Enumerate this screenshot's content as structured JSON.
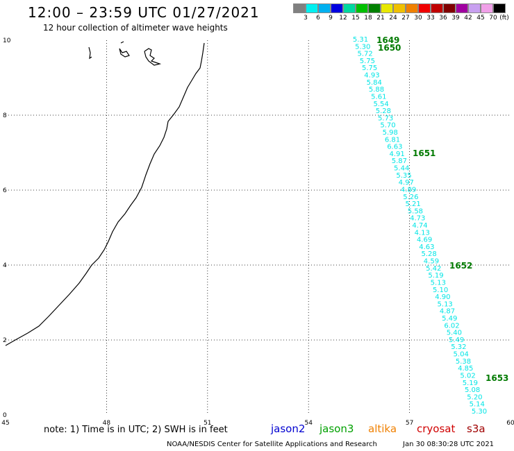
{
  "header": {
    "title": "12:00 – 23:59 UTC 01/27/2021",
    "subtitle": "12 hour collection of altimeter wave heights"
  },
  "legend": {
    "colors": [
      "#808080",
      "#00f0f0",
      "#00b0f0",
      "#0000e0",
      "#00d8a0",
      "#00c000",
      "#008000",
      "#e8e800",
      "#f0c000",
      "#f08000",
      "#f00000",
      "#c00000",
      "#800000",
      "#a000a0",
      "#c8a0f0",
      "#f0a0e8",
      "#000000"
    ],
    "labels": [
      "3",
      "6",
      "9",
      "12",
      "15",
      "18",
      "21",
      "24",
      "27",
      "30",
      "33",
      "36",
      "39",
      "42",
      "45",
      "70"
    ],
    "unit": "(ft)"
  },
  "map": {
    "lon_ticks": [
      "45",
      "48",
      "51",
      "54",
      "57",
      "60"
    ],
    "lat_ticks": [
      "0",
      "2",
      "4",
      "6",
      "8",
      "10"
    ],
    "swh_color": "#00e5e5",
    "time_color": "#007a00",
    "swh_values": [
      "5.31",
      "5.30",
      "5.72",
      "5.75",
      "5.75",
      "4.93",
      "5.84",
      "5.88",
      "5.61",
      "5.54",
      "5.28",
      "5.73",
      "5.70",
      "5.98",
      "6.81",
      "6.63",
      "4.91",
      "5.87",
      "5.44",
      "5.35",
      "4.97",
      "4.89",
      "5.26",
      "5.21",
      "5.58",
      "4.73",
      "4.74",
      "4.13",
      "4.69",
      "4.63",
      "5.28",
      "4.59",
      "5.42",
      "5.19",
      "5.13",
      "5.10",
      "4.90",
      "5.13",
      "4.87",
      "5.49",
      "6.02",
      "5.40",
      "5.49",
      "5.32",
      "5.04",
      "5.38",
      "4.85",
      "5.02",
      "5.19",
      "5.08",
      "5.20",
      "5.14",
      "5.30"
    ],
    "time_labels": [
      "1649",
      "1650",
      "1651",
      "1652",
      "1653"
    ]
  },
  "footer": {
    "note": "note: 1) Time is in UTC; 2) SWH is in feet",
    "satellites": [
      {
        "name": "jason2",
        "color": "#0000d0"
      },
      {
        "name": "jason3",
        "color": "#00a000"
      },
      {
        "name": "altika",
        "color": "#f08000"
      },
      {
        "name": "cryosat",
        "color": "#d00000"
      },
      {
        "name": "s3a",
        "color": "#a00000"
      }
    ],
    "credit": "NOAA/NESDIS Center for Satellite Applications and Research",
    "timestamp": "Jan 30 08:30:28 UTC 2021"
  }
}
